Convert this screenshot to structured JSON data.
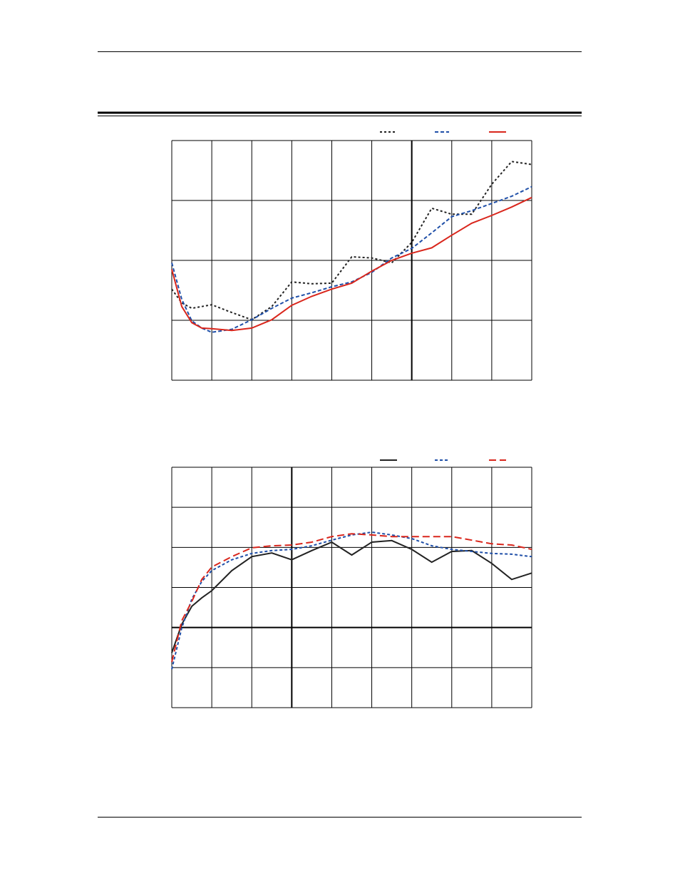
{
  "chart_data": [
    {
      "type": "line",
      "grid": true,
      "xlim": [
        0,
        9
      ],
      "ylim": [
        0,
        4
      ],
      "xticks": [
        0,
        1,
        2,
        3,
        4,
        5,
        6,
        7,
        8,
        9
      ],
      "yticks": [
        0,
        1,
        2,
        3,
        4
      ],
      "axes_at": {
        "x": 6
      },
      "x": [
        0,
        0.25,
        0.5,
        0.75,
        1,
        1.5,
        2,
        2.5,
        3,
        3.5,
        4,
        4.5,
        5,
        5.5,
        6,
        6.5,
        7,
        7.5,
        8,
        8.5,
        9
      ],
      "series": [
        {
          "color": "#222222",
          "dash": "3,3",
          "values": [
            1.52,
            1.29,
            1.2,
            1.23,
            1.26,
            1.13,
            1.01,
            1.23,
            1.64,
            1.61,
            1.62,
            2.06,
            2.04,
            1.96,
            2.3,
            2.87,
            2.77,
            2.77,
            3.27,
            3.65,
            3.6
          ]
        },
        {
          "color": "#1f4fa8",
          "dash": "5,3",
          "values": [
            1.96,
            1.35,
            0.99,
            0.87,
            0.8,
            0.85,
            1.01,
            1.2,
            1.37,
            1.46,
            1.56,
            1.64,
            1.8,
            2.04,
            2.2,
            2.46,
            2.73,
            2.83,
            2.95,
            3.07,
            3.23
          ]
        },
        {
          "color": "#d9261c",
          "dash": "none",
          "values": [
            1.85,
            1.23,
            0.96,
            0.87,
            0.86,
            0.83,
            0.87,
            1.01,
            1.25,
            1.4,
            1.52,
            1.62,
            1.82,
            2.0,
            2.12,
            2.21,
            2.42,
            2.62,
            2.75,
            2.89,
            3.05
          ]
        }
      ]
    },
    {
      "type": "line",
      "grid": true,
      "xlim": [
        0,
        9
      ],
      "ylim": [
        0,
        6
      ],
      "xticks": [
        0,
        1,
        2,
        3,
        4,
        5,
        6,
        7,
        8,
        9
      ],
      "yticks": [
        0,
        1,
        2,
        3,
        4,
        5,
        6
      ],
      "axes_at": {
        "x": 3,
        "y": 2
      },
      "x": [
        0,
        0.25,
        0.5,
        0.75,
        1,
        1.5,
        2,
        2.5,
        3,
        3.5,
        4,
        4.5,
        5,
        5.5,
        6,
        6.5,
        7,
        7.5,
        8,
        8.5,
        9
      ],
      "series": [
        {
          "color": "#222222",
          "dash": "none",
          "values": [
            1.37,
            2.08,
            2.53,
            2.74,
            2.92,
            3.42,
            3.77,
            3.86,
            3.69,
            3.92,
            4.13,
            3.81,
            4.13,
            4.17,
            3.95,
            3.63,
            3.9,
            3.92,
            3.6,
            3.2,
            3.36
          ]
        },
        {
          "color": "#1f4fa8",
          "dash": "4,3",
          "values": [
            0.96,
            1.99,
            2.71,
            3.15,
            3.42,
            3.69,
            3.85,
            3.92,
            3.95,
            4.04,
            4.18,
            4.31,
            4.38,
            4.31,
            4.22,
            4.04,
            3.95,
            3.9,
            3.85,
            3.83,
            3.77
          ]
        },
        {
          "color": "#d9261c",
          "dash": "10,5",
          "values": [
            1.14,
            2.17,
            2.65,
            3.2,
            3.51,
            3.77,
            3.99,
            4.04,
            4.06,
            4.13,
            4.27,
            4.34,
            4.31,
            4.27,
            4.27,
            4.27,
            4.27,
            4.18,
            4.09,
            4.06,
            3.95
          ]
        }
      ]
    }
  ]
}
